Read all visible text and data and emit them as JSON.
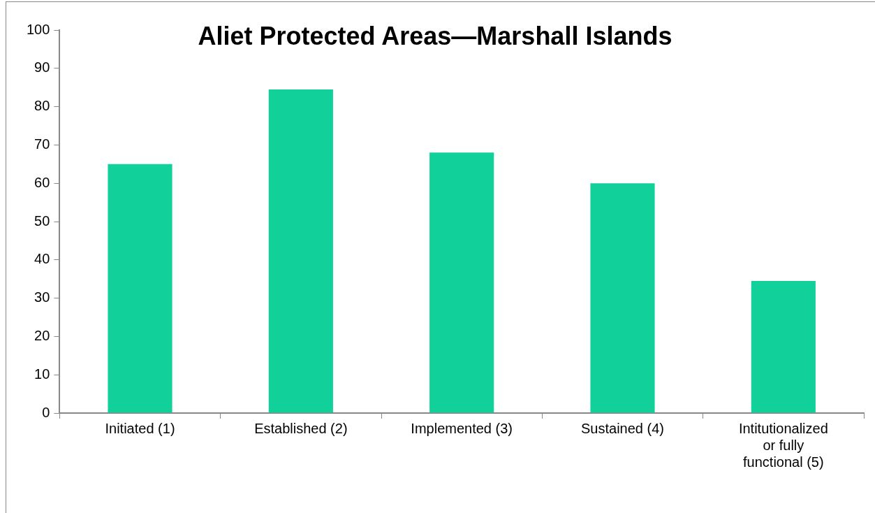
{
  "chart_data": {
    "type": "bar",
    "title": "Aliet Protected Areas—Marshall Islands",
    "categories": [
      "Initiated (1)",
      "Established (2)",
      "Implemented (3)",
      "Sustained (4)",
      "Intitutionalized or fully functional (5)"
    ],
    "values": [
      65,
      84.5,
      68,
      60,
      34.5
    ],
    "color": "#12d09a",
    "ylim": [
      0,
      100
    ],
    "yticks": [
      0,
      10,
      20,
      30,
      40,
      50,
      60,
      70,
      80,
      90,
      100
    ],
    "grid": false,
    "legend": false
  }
}
